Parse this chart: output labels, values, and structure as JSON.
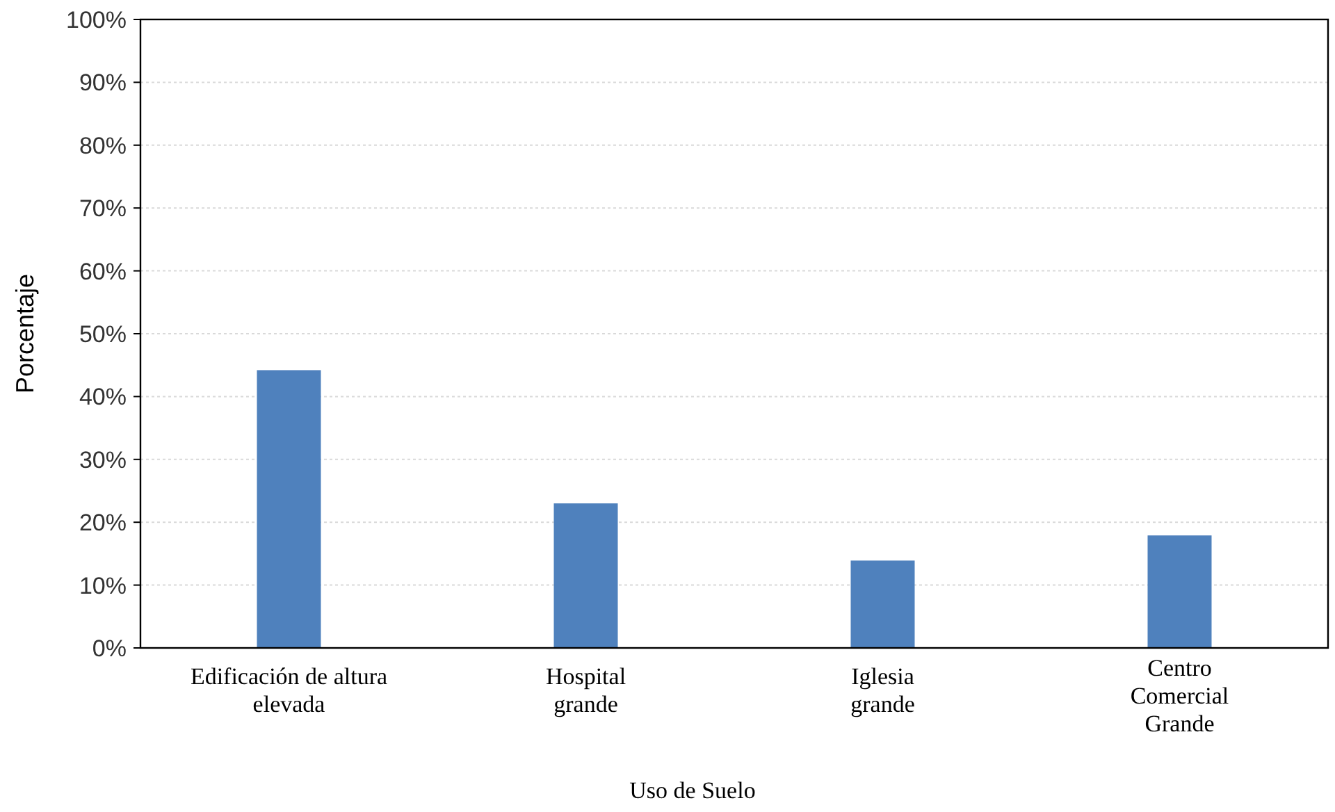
{
  "chart_data": {
    "type": "bar",
    "xlabel": "Uso de Suelo",
    "ylabel": "Porcentaje",
    "categories": [
      "Edificación de altura\nelevada",
      "Hospital\ngrande",
      "Iglesia\ngrande",
      "Centro\nComercial\nGrande"
    ],
    "values": [
      44.2,
      23,
      13.9,
      17.9
    ],
    "color": "#4f81bd",
    "ylim": [
      0,
      100
    ],
    "yticks": [
      {
        "value": 0,
        "label": "0%"
      },
      {
        "value": 10,
        "label": "10%"
      },
      {
        "value": 20,
        "label": "20%"
      },
      {
        "value": 30,
        "label": "30%"
      },
      {
        "value": 40,
        "label": "40%"
      },
      {
        "value": 50,
        "label": "50%"
      },
      {
        "value": 60,
        "label": "60%"
      },
      {
        "value": 70,
        "label": "70%"
      },
      {
        "value": 80,
        "label": "80%"
      },
      {
        "value": 90,
        "label": "90%"
      },
      {
        "value": 100,
        "label": "100%"
      }
    ],
    "grid": "y"
  }
}
